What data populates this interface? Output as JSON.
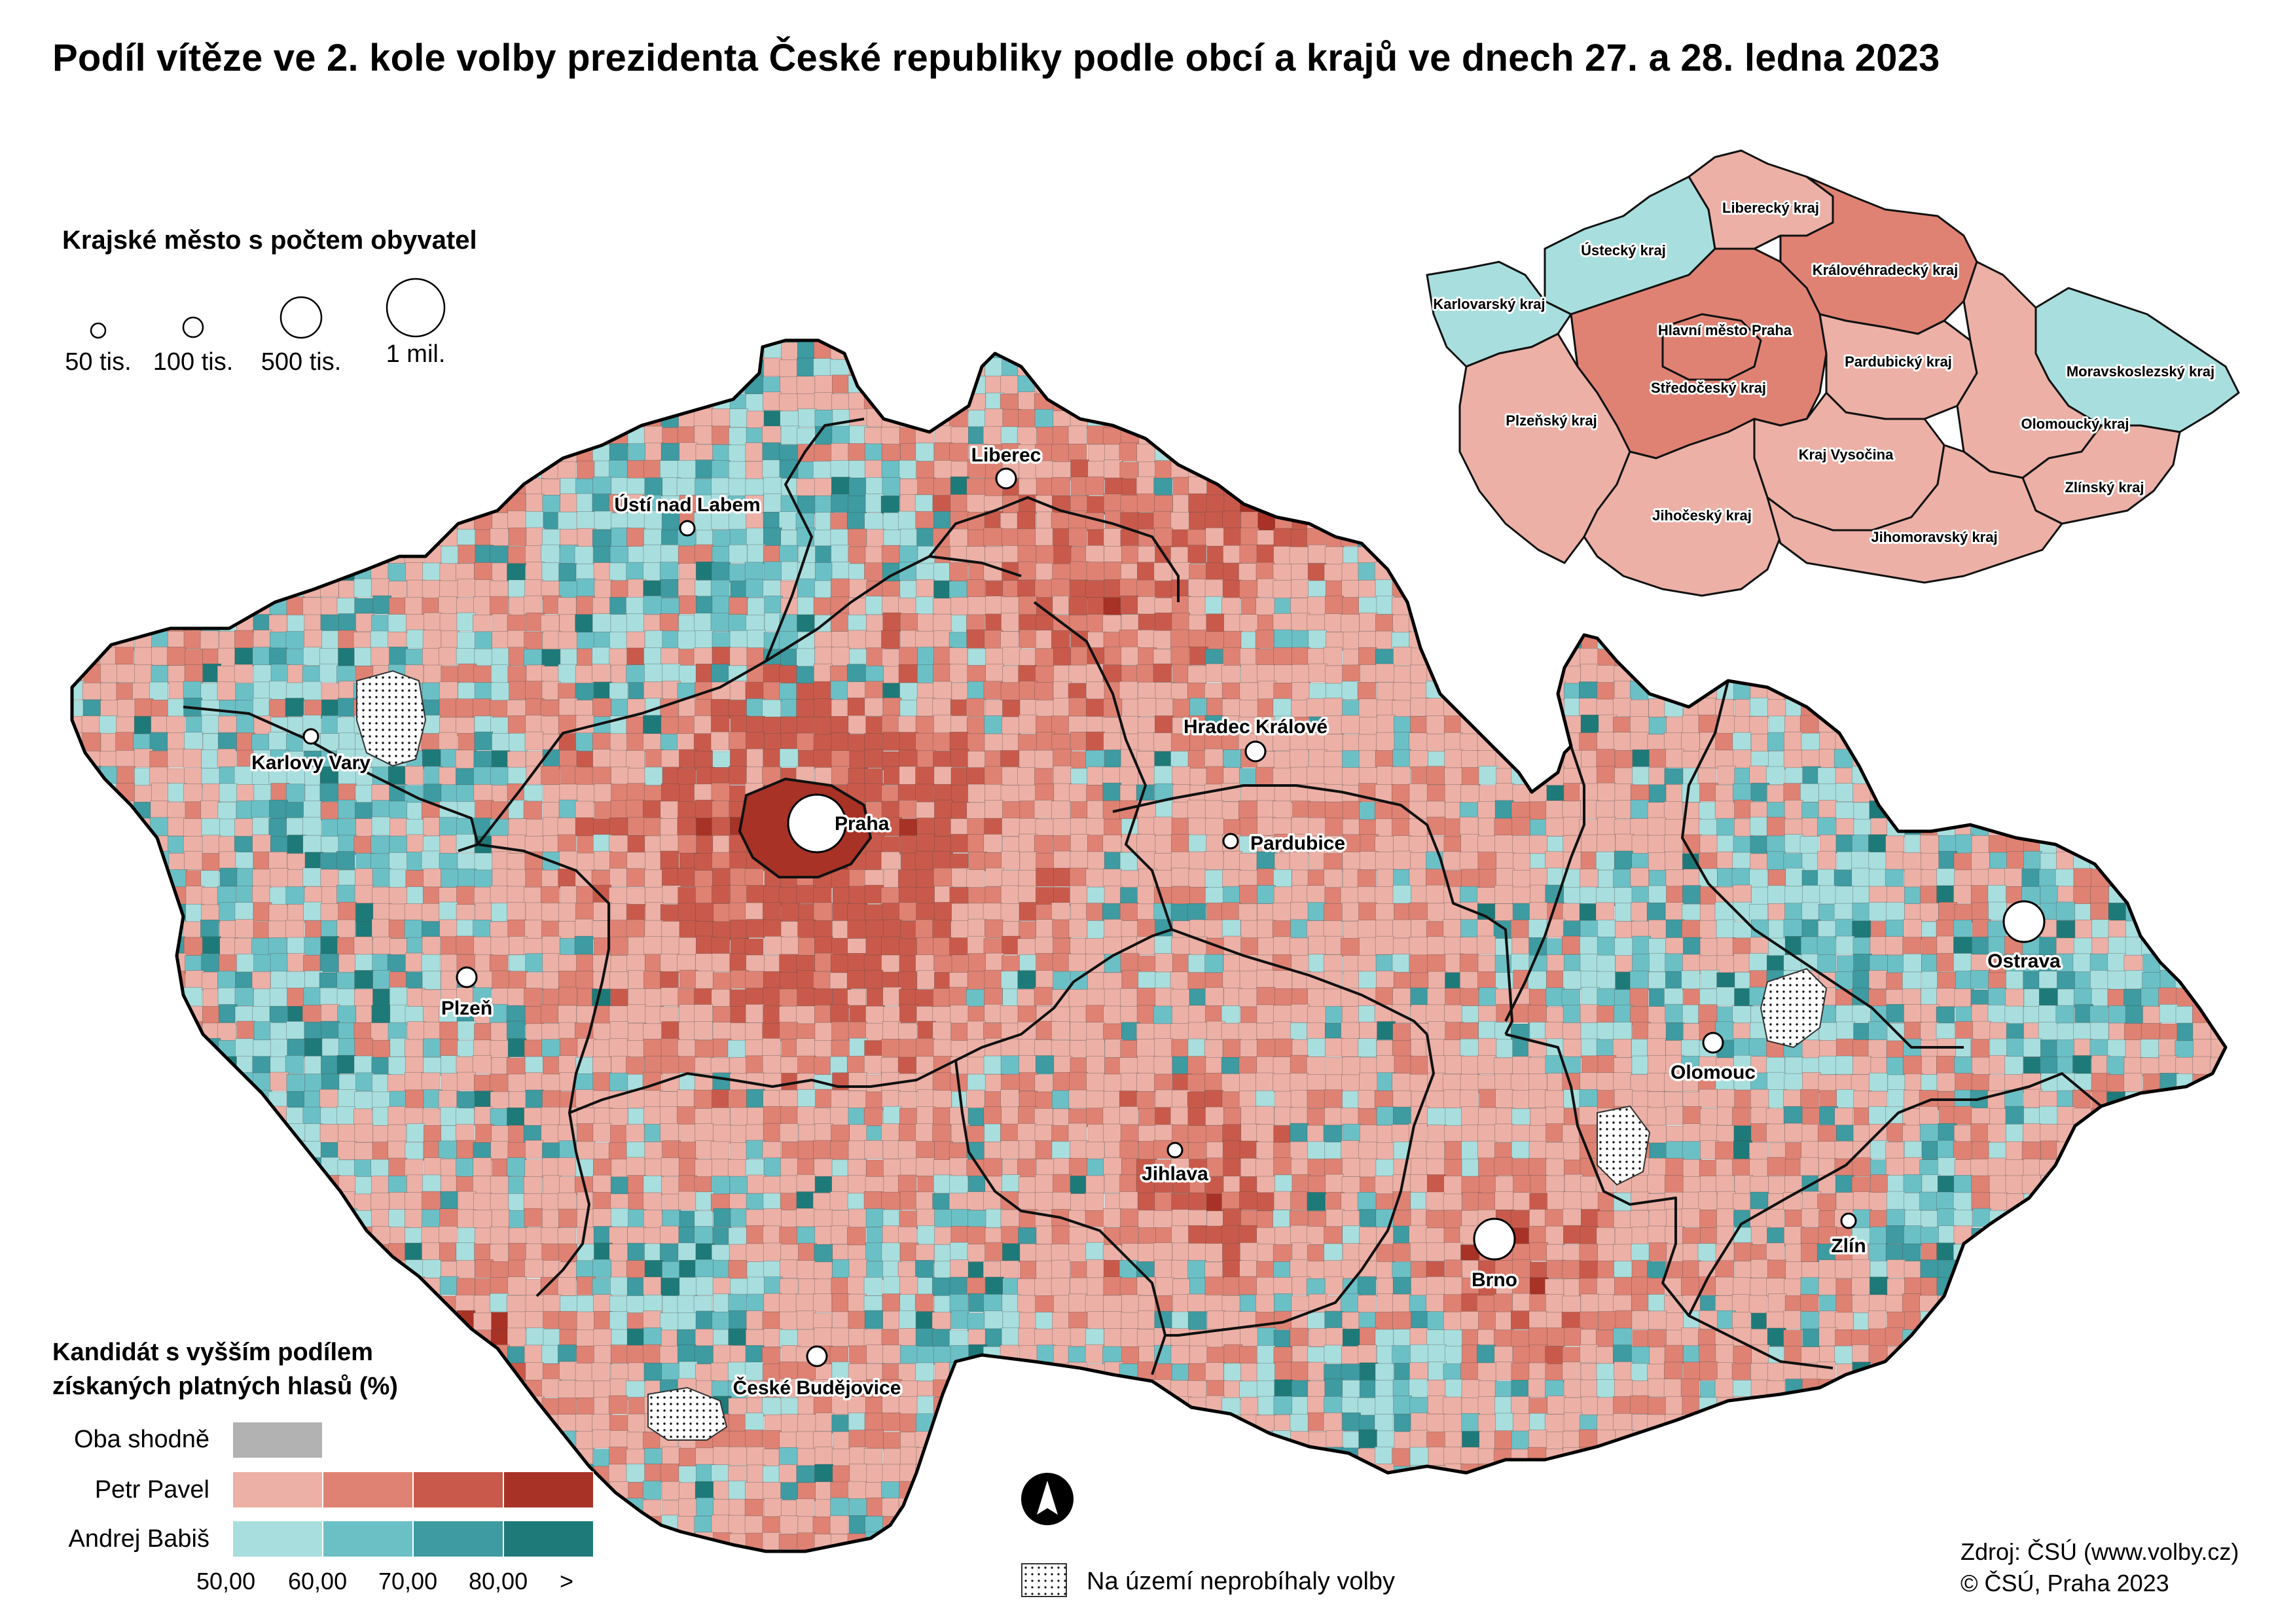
{
  "title": "Podíl vítěze ve 2. kole volby prezidenta České republiky podle obcí a krajů ve dnech 27. a 28. ledna 2023",
  "colors": {
    "equal": "#b2b2b2",
    "pavel": [
      "#ecb0a6",
      "#df8273",
      "#c95a4b",
      "#a83226"
    ],
    "babis": [
      "#a8dede",
      "#6bc0c6",
      "#3d9ba1",
      "#1e7a79"
    ],
    "border": "#111111"
  },
  "city_legend": {
    "title": "Krajské město s počtem obyvatel",
    "sizes": [
      "50 tis.",
      "100 tis.",
      "500 tis.",
      "1 mil."
    ]
  },
  "cities": [
    {
      "name": "Praha",
      "size": "1 mil."
    },
    {
      "name": "Brno",
      "size": "500 tis."
    },
    {
      "name": "Ostrava",
      "size": "500 tis."
    },
    {
      "name": "Plzeň",
      "size": "100 tis."
    },
    {
      "name": "Liberec",
      "size": "100 tis."
    },
    {
      "name": "Olomouc",
      "size": "100 tis."
    },
    {
      "name": "České Budějovice",
      "size": "100 tis."
    },
    {
      "name": "Hradec Králové",
      "size": "100 tis."
    },
    {
      "name": "Ústí nad Labem",
      "size": "50 tis."
    },
    {
      "name": "Pardubice",
      "size": "50 tis."
    },
    {
      "name": "Zlín",
      "size": "50 tis."
    },
    {
      "name": "Karlovy Vary",
      "size": "50 tis."
    },
    {
      "name": "Jihlava",
      "size": "50 tis."
    }
  ],
  "regions": [
    {
      "name": "Karlovarský kraj",
      "winner": "Andrej Babiš",
      "class": 1
    },
    {
      "name": "Ústecký kraj",
      "winner": "Andrej Babiš",
      "class": 1
    },
    {
      "name": "Liberecký kraj",
      "winner": "Petr Pavel",
      "class": 1
    },
    {
      "name": "Královéhradecký kraj",
      "winner": "Petr Pavel",
      "class": 2
    },
    {
      "name": "Hlavní město Praha",
      "winner": "Petr Pavel",
      "class": 2
    },
    {
      "name": "Středočeský kraj",
      "winner": "Petr Pavel",
      "class": 2
    },
    {
      "name": "Pardubický kraj",
      "winner": "Petr Pavel",
      "class": 1
    },
    {
      "name": "Moravskoslezský kraj",
      "winner": "Andrej Babiš",
      "class": 1
    },
    {
      "name": "Plzeňský kraj",
      "winner": "Petr Pavel",
      "class": 1
    },
    {
      "name": "Olomoucký kraj",
      "winner": "Petr Pavel",
      "class": 1
    },
    {
      "name": "Kraj Vysočina",
      "winner": "Petr Pavel",
      "class": 1
    },
    {
      "name": "Zlínský kraj",
      "winner": "Petr Pavel",
      "class": 1
    },
    {
      "name": "Jihočeský kraj",
      "winner": "Petr Pavel",
      "class": 1
    },
    {
      "name": "Jihomoravský kraj",
      "winner": "Petr Pavel",
      "class": 1
    }
  ],
  "result_legend": {
    "title": "Kandidát s vyšším podílem\nzískaných platných hlasů (%)",
    "rows": [
      "Oba shodně",
      "Petr Pavel",
      "Andrej Babiš"
    ],
    "ticks": [
      "50,00",
      "60,00",
      "70,00",
      "80,00",
      ">"
    ]
  },
  "no_data_label": "Na území neprobíhaly volby",
  "north_arrow": "north-arrow",
  "source": {
    "line1": "Zdroj: ČSÚ (www.volby.cz)",
    "line2": "© ČSÚ, Praha 2023"
  }
}
